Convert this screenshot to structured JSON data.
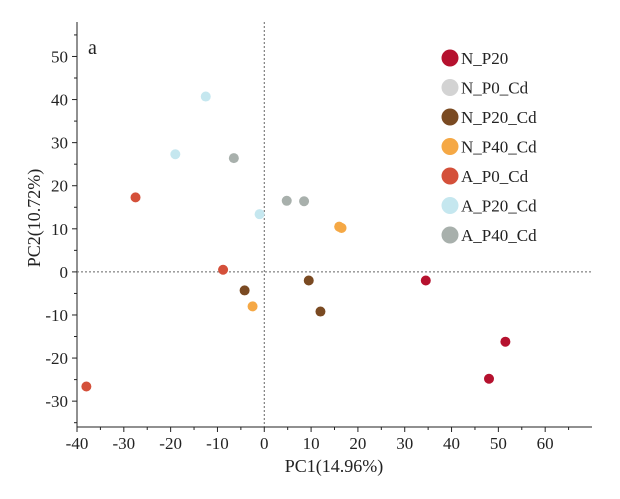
{
  "chart_data": {
    "type": "scatter",
    "panel_label": "a",
    "xlabel": "PC1(14.96%)",
    "ylabel": "PC2(10.72%)",
    "xlim": [
      -40,
      70
    ],
    "ylim": [
      -36,
      58
    ],
    "xticks": [
      -40,
      -30,
      -20,
      -10,
      0,
      10,
      20,
      30,
      40,
      50,
      60
    ],
    "yticks": [
      -30,
      -20,
      -10,
      0,
      10,
      20,
      30,
      40,
      50
    ],
    "xtick_labels": [
      "-40",
      "-30",
      "-20",
      "-10",
      "0",
      "10",
      "20",
      "30",
      "40",
      "50",
      "60"
    ],
    "ytick_labels": [
      "-30",
      "-20",
      "-10",
      "0",
      "10",
      "20",
      "30",
      "40",
      "50"
    ],
    "reference_lines": {
      "x": 0,
      "y": 0,
      "style": "dotted"
    },
    "legend_position": "top-right",
    "grid": false,
    "series": [
      {
        "name": "N_P20",
        "color": "#b5112e",
        "points": [
          [
            34.5,
            -2.0
          ],
          [
            51.5,
            -16.2
          ],
          [
            48.0,
            -24.8
          ]
        ]
      },
      {
        "name": "N_P0_Cd",
        "color": "#d3d3d3",
        "points": []
      },
      {
        "name": "N_P20_Cd",
        "color": "#7a4a22",
        "points": [
          [
            -4.2,
            -4.3
          ],
          [
            9.5,
            -2.0
          ],
          [
            12.0,
            -9.2
          ]
        ]
      },
      {
        "name": "N_P40_Cd",
        "color": "#f5a845",
        "points": [
          [
            16.0,
            10.5
          ],
          [
            16.5,
            10.2
          ],
          [
            -2.5,
            -8.0
          ]
        ]
      },
      {
        "name": "A_P0_Cd",
        "color": "#d4503a",
        "points": [
          [
            -27.5,
            17.3
          ],
          [
            -8.8,
            0.5
          ],
          [
            -38.0,
            -26.6
          ]
        ]
      },
      {
        "name": "A_P20_Cd",
        "color": "#c5e7ef",
        "points": [
          [
            -12.5,
            40.7
          ],
          [
            -19.0,
            27.3
          ],
          [
            -1.0,
            13.4
          ]
        ]
      },
      {
        "name": "A_P40_Cd",
        "color": "#a8b0ac",
        "points": [
          [
            -6.5,
            26.4
          ],
          [
            4.8,
            16.5
          ],
          [
            8.5,
            16.4
          ]
        ]
      }
    ]
  }
}
